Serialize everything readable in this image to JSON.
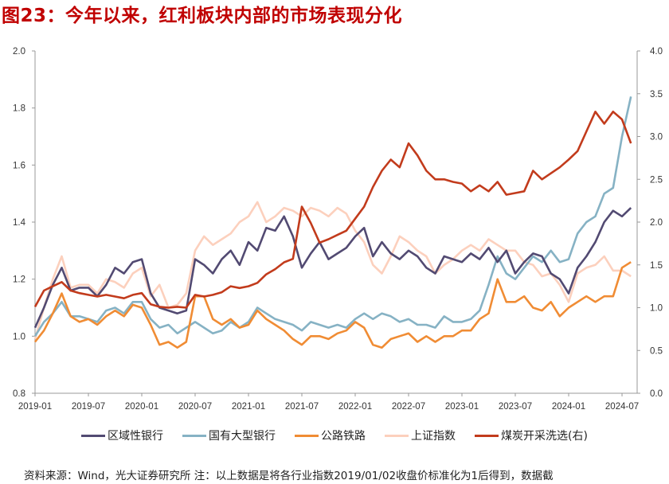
{
  "title": "图23：今年以来，红利板块内部的市场表现分化",
  "footer": "资料来源：Wind，光大证券研究所    注：以上数据是将各行业指数2019/01/02收盘价标准化为1后得到，数据截",
  "chart_data": {
    "type": "line",
    "title": "",
    "xlabel": "",
    "ylabel": "",
    "x_ticks": [
      "2019-01",
      "2019-07",
      "2020-01",
      "2020-07",
      "2021-01",
      "2021-07",
      "2022-01",
      "2022-07",
      "2023-01",
      "2023-07",
      "2024-01",
      "2024-07"
    ],
    "y_left": {
      "lim": [
        0.8,
        2.0
      ],
      "ticks": [
        "0.8",
        "1.0",
        "1.2",
        "1.4",
        "1.6",
        "1.8",
        "2.0"
      ]
    },
    "y_right": {
      "lim": [
        0.0,
        4.0
      ],
      "ticks": [
        "0.0",
        "0.5",
        "1.0",
        "1.5",
        "2.0",
        "2.5",
        "3.0",
        "3.5",
        "4.0"
      ]
    },
    "grid": false,
    "legend_position": "bottom",
    "x": [
      "2019-01",
      "2019-02",
      "2019-03",
      "2019-04",
      "2019-05",
      "2019-06",
      "2019-07",
      "2019-08",
      "2019-09",
      "2019-10",
      "2019-11",
      "2019-12",
      "2020-01",
      "2020-02",
      "2020-03",
      "2020-04",
      "2020-05",
      "2020-06",
      "2020-07",
      "2020-08",
      "2020-09",
      "2020-10",
      "2020-11",
      "2020-12",
      "2021-01",
      "2021-02",
      "2021-03",
      "2021-04",
      "2021-05",
      "2021-06",
      "2021-07",
      "2021-08",
      "2021-09",
      "2021-10",
      "2021-11",
      "2021-12",
      "2022-01",
      "2022-02",
      "2022-03",
      "2022-04",
      "2022-05",
      "2022-06",
      "2022-07",
      "2022-08",
      "2022-09",
      "2022-10",
      "2022-11",
      "2022-12",
      "2023-01",
      "2023-02",
      "2023-03",
      "2023-04",
      "2023-05",
      "2023-06",
      "2023-07",
      "2023-08",
      "2023-09",
      "2023-10",
      "2023-11",
      "2023-12",
      "2024-01",
      "2024-02",
      "2024-03",
      "2024-04",
      "2024-05",
      "2024-06",
      "2024-07",
      "2024-08"
    ],
    "series": [
      {
        "name": "上证指数",
        "axis": "left",
        "color": "#fcd0bd",
        "values": [
          0.99,
          1.1,
          1.2,
          1.28,
          1.17,
          1.18,
          1.18,
          1.15,
          1.2,
          1.19,
          1.17,
          1.22,
          1.24,
          1.14,
          1.18,
          1.1,
          1.11,
          1.15,
          1.3,
          1.35,
          1.32,
          1.34,
          1.36,
          1.4,
          1.42,
          1.47,
          1.4,
          1.42,
          1.45,
          1.44,
          1.42,
          1.45,
          1.44,
          1.42,
          1.45,
          1.43,
          1.37,
          1.33,
          1.25,
          1.22,
          1.28,
          1.35,
          1.33,
          1.3,
          1.28,
          1.22,
          1.25,
          1.27,
          1.3,
          1.32,
          1.3,
          1.34,
          1.32,
          1.3,
          1.3,
          1.26,
          1.25,
          1.21,
          1.22,
          1.18,
          1.12,
          1.22,
          1.24,
          1.25,
          1.28,
          1.23,
          1.23,
          1.21
        ]
      },
      {
        "name": "国有大型银行",
        "axis": "left",
        "color": "#86b2c4",
        "values": [
          1.0,
          1.05,
          1.08,
          1.12,
          1.07,
          1.07,
          1.06,
          1.05,
          1.09,
          1.1,
          1.08,
          1.12,
          1.12,
          1.06,
          1.03,
          1.04,
          1.01,
          1.03,
          1.05,
          1.03,
          1.01,
          1.02,
          1.05,
          1.03,
          1.05,
          1.1,
          1.08,
          1.06,
          1.05,
          1.04,
          1.02,
          1.05,
          1.04,
          1.03,
          1.04,
          1.03,
          1.06,
          1.08,
          1.06,
          1.08,
          1.07,
          1.05,
          1.06,
          1.04,
          1.04,
          1.03,
          1.07,
          1.05,
          1.05,
          1.06,
          1.09,
          1.18,
          1.28,
          1.22,
          1.2,
          1.24,
          1.28,
          1.26,
          1.3,
          1.26,
          1.27,
          1.36,
          1.4,
          1.42,
          1.5,
          1.52,
          1.7,
          1.84
        ]
      },
      {
        "name": "公路铁路",
        "axis": "left",
        "color": "#f08c34",
        "values": [
          0.98,
          1.02,
          1.08,
          1.15,
          1.07,
          1.05,
          1.06,
          1.04,
          1.07,
          1.09,
          1.07,
          1.11,
          1.1,
          1.04,
          0.97,
          0.98,
          0.96,
          0.98,
          1.14,
          1.14,
          1.06,
          1.04,
          1.06,
          1.03,
          1.04,
          1.09,
          1.06,
          1.04,
          1.02,
          0.99,
          0.97,
          1.0,
          1.0,
          0.99,
          1.01,
          1.02,
          1.05,
          1.03,
          0.97,
          0.96,
          0.99,
          1.0,
          1.01,
          0.98,
          1.0,
          0.98,
          1.0,
          1.0,
          1.02,
          1.02,
          1.06,
          1.08,
          1.2,
          1.12,
          1.12,
          1.14,
          1.1,
          1.09,
          1.12,
          1.07,
          1.1,
          1.12,
          1.14,
          1.12,
          1.14,
          1.14,
          1.24,
          1.26
        ]
      },
      {
        "name": "区域性银行",
        "axis": "left",
        "color": "#524a72",
        "values": [
          1.03,
          1.1,
          1.18,
          1.24,
          1.16,
          1.17,
          1.17,
          1.14,
          1.18,
          1.24,
          1.22,
          1.26,
          1.27,
          1.15,
          1.1,
          1.09,
          1.08,
          1.09,
          1.27,
          1.25,
          1.22,
          1.27,
          1.3,
          1.25,
          1.33,
          1.3,
          1.38,
          1.37,
          1.42,
          1.35,
          1.24,
          1.29,
          1.33,
          1.27,
          1.29,
          1.31,
          1.35,
          1.38,
          1.28,
          1.33,
          1.29,
          1.27,
          1.3,
          1.28,
          1.24,
          1.22,
          1.28,
          1.27,
          1.26,
          1.29,
          1.27,
          1.31,
          1.26,
          1.3,
          1.22,
          1.26,
          1.29,
          1.28,
          1.22,
          1.2,
          1.15,
          1.24,
          1.28,
          1.33,
          1.4,
          1.44,
          1.42,
          1.45
        ]
      },
      {
        "name": "煤炭开采洗选(右)",
        "axis": "right",
        "color": "#c23b1c",
        "values": [
          1.01,
          1.2,
          1.25,
          1.3,
          1.2,
          1.17,
          1.15,
          1.13,
          1.15,
          1.13,
          1.11,
          1.15,
          1.17,
          1.04,
          1.01,
          1.0,
          1.01,
          1.0,
          1.15,
          1.13,
          1.15,
          1.18,
          1.25,
          1.23,
          1.25,
          1.29,
          1.39,
          1.45,
          1.53,
          1.57,
          2.18,
          1.99,
          1.76,
          1.8,
          1.85,
          1.9,
          2.04,
          2.18,
          2.41,
          2.6,
          2.73,
          2.64,
          2.92,
          2.78,
          2.6,
          2.5,
          2.5,
          2.47,
          2.45,
          2.36,
          2.43,
          2.36,
          2.47,
          2.32,
          2.34,
          2.36,
          2.6,
          2.5,
          2.57,
          2.64,
          2.73,
          2.83,
          3.06,
          3.29,
          3.15,
          3.29,
          3.2,
          2.92
        ]
      }
    ]
  }
}
